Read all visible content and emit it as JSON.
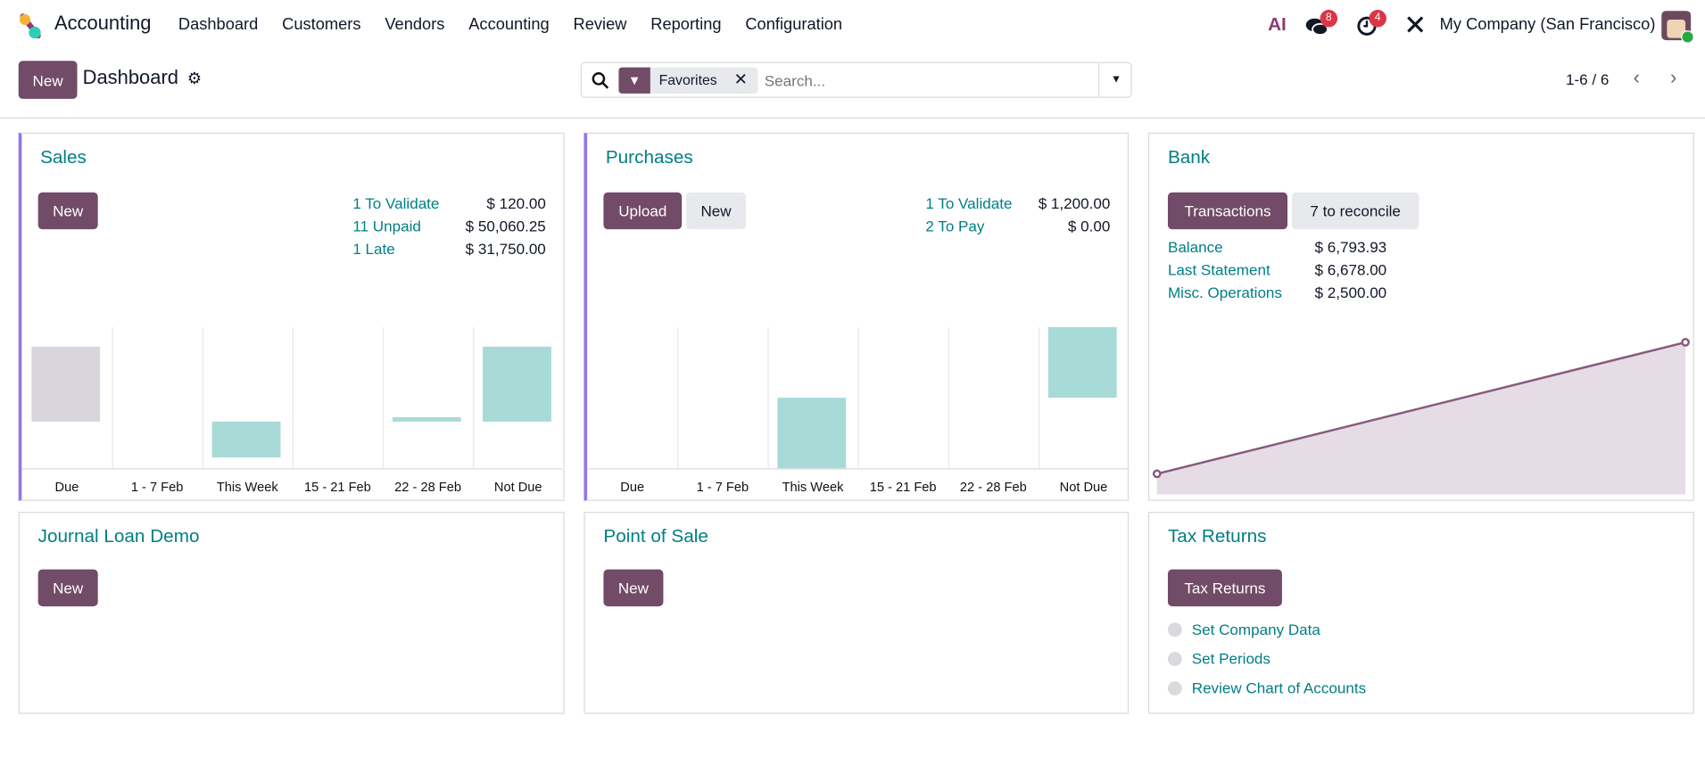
{
  "navbar": {
    "app_name": "Accounting",
    "menu": [
      "Dashboard",
      "Customers",
      "Vendors",
      "Accounting",
      "Review",
      "Reporting",
      "Configuration"
    ],
    "ai_label": "AI",
    "messages_count": "8",
    "activities_count": "4",
    "company": "My Company (San Francisco)",
    "icons": [
      "odoo-logo-icon",
      "ai-icon",
      "chat-icon",
      "clock-icon",
      "tools-icon",
      "avatar"
    ]
  },
  "control_panel": {
    "new_label": "New",
    "title": "Dashboard",
    "facet_label": "Favorites",
    "search_placeholder": "Search...",
    "pager": "1-6 / 6"
  },
  "colors": {
    "primary": "#714b67",
    "link": "#017e84",
    "bar": "#a8dad8",
    "past_bar": "#d8d6dc",
    "line": "#875a7b",
    "fill": "#e6dce5",
    "accent_border": "#9575e6"
  },
  "cards": {
    "sales": {
      "title": "Sales",
      "new_label": "New",
      "stats": [
        {
          "label": "1 To Validate",
          "value": "$ 120.00"
        },
        {
          "label": "11 Unpaid",
          "value": "$ 50,060.25"
        },
        {
          "label": "1 Late",
          "value": "$ 31,750.00"
        }
      ]
    },
    "purchases": {
      "title": "Purchases",
      "upload_label": "Upload",
      "new_label": "New",
      "stats": [
        {
          "label": "1 To Validate",
          "value": "$ 1,200.00"
        },
        {
          "label": "2 To Pay",
          "value": "$ 0.00"
        }
      ]
    },
    "bank": {
      "title": "Bank",
      "transactions_label": "Transactions",
      "reconcile_label": "7 to reconcile",
      "stats": [
        {
          "label": "Balance",
          "value": "$ 6,793.93"
        },
        {
          "label": "Last Statement",
          "value": "$ 6,678.00"
        },
        {
          "label": "Misc. Operations",
          "value": "$ 2,500.00"
        }
      ]
    },
    "journal_loan": {
      "title": "Journal Loan Demo",
      "new_label": "New"
    },
    "pos": {
      "title": "Point of Sale",
      "new_label": "New"
    },
    "tax": {
      "title": "Tax Returns",
      "button_label": "Tax Returns",
      "steps": [
        "Set Company Data",
        "Set Periods",
        "Review Chart of Accounts"
      ]
    }
  },
  "chart_data": [
    {
      "type": "bar",
      "categories": [
        "Due",
        "1 - 7 Feb",
        "This Week",
        "15 - 21 Feb",
        "22 - 28 Feb",
        "Not Due"
      ],
      "values": [
        31750,
        0,
        -15400,
        0,
        1900,
        31750
      ],
      "past": [
        true,
        false,
        false,
        false,
        false,
        false
      ],
      "ylim": [
        -20000,
        40000
      ]
    },
    {
      "type": "bar",
      "categories": [
        "Due",
        "1 - 7 Feb",
        "This Week",
        "15 - 21 Feb",
        "22 - 28 Feb",
        "Not Due"
      ],
      "values": [
        0,
        0,
        -1200,
        0,
        0,
        1200
      ],
      "past": [
        false,
        false,
        false,
        false,
        false,
        false
      ],
      "ylim": [
        -1200,
        1200
      ]
    },
    {
      "type": "area",
      "values": [
        920,
        6793.93
      ],
      "ylim": [
        0,
        6793.93
      ]
    }
  ]
}
